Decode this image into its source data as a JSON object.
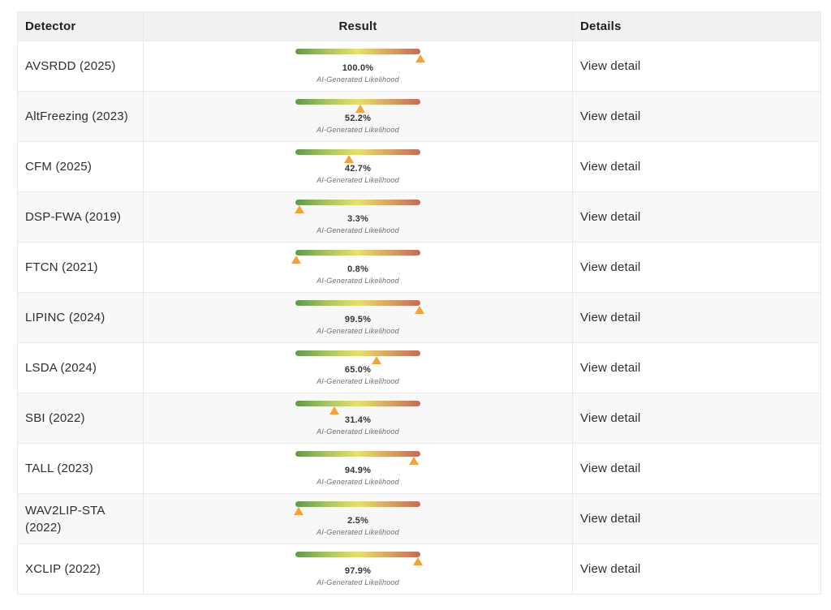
{
  "table": {
    "headers": [
      "Detector",
      "Result",
      "Details"
    ],
    "caption_label": "AI-Generated Likelihood",
    "view_detail_label": "View detail",
    "rows": [
      {
        "detector": "AVSRDD (2025)",
        "likelihood_pct": "100.0%",
        "value": 100.0
      },
      {
        "detector": "AltFreezing (2023)",
        "likelihood_pct": "52.2%",
        "value": 52.2
      },
      {
        "detector": "CFM (2025)",
        "likelihood_pct": "42.7%",
        "value": 42.7
      },
      {
        "detector": "DSP-FWA (2019)",
        "likelihood_pct": "3.3%",
        "value": 3.3
      },
      {
        "detector": "FTCN (2021)",
        "likelihood_pct": "0.8%",
        "value": 0.8
      },
      {
        "detector": "LIPINC (2024)",
        "likelihood_pct": "99.5%",
        "value": 99.5
      },
      {
        "detector": "LSDA (2024)",
        "likelihood_pct": "65.0%",
        "value": 65.0
      },
      {
        "detector": "SBI (2022)",
        "likelihood_pct": "31.4%",
        "value": 31.4
      },
      {
        "detector": "TALL (2023)",
        "likelihood_pct": "94.9%",
        "value": 94.9
      },
      {
        "detector": "WAV2LIP-STA (2022)",
        "likelihood_pct": "2.5%",
        "value": 2.5
      },
      {
        "detector": "XCLIP (2022)",
        "likelihood_pct": "97.9%",
        "value": 97.9
      }
    ]
  },
  "colors": {
    "header_bg": "#f1f1f1",
    "stripe_bg": "#f8f8f8",
    "border": "#e9e9e9",
    "marker": "#f2a33e",
    "gradient_stops": [
      "#5f9850",
      "#a9c360",
      "#e6e06e",
      "#d7a564",
      "#c26b5c"
    ]
  }
}
